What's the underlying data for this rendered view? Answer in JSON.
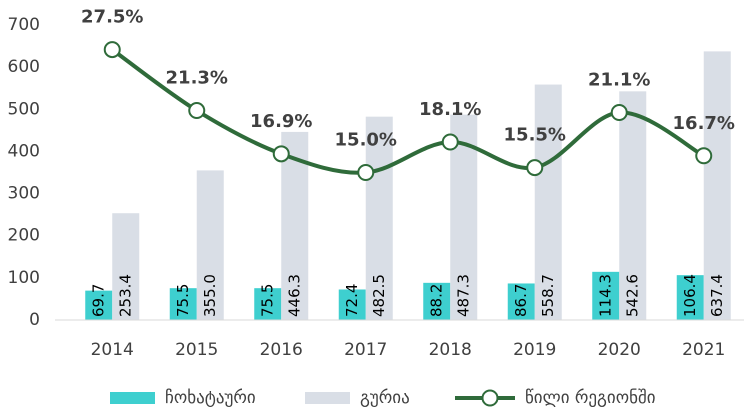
{
  "chart_data": {
    "type": "bar-line",
    "categories": [
      "2014",
      "2015",
      "2016",
      "2017",
      "2018",
      "2019",
      "2020",
      "2021"
    ],
    "series": [
      {
        "name": "ჩოხატაური",
        "type": "bar",
        "color": "#3ecfcf",
        "values": [
          69.7,
          75.5,
          75.5,
          72.4,
          88.2,
          86.7,
          114.3,
          106.4
        ],
        "value_labels": [
          "69.7",
          "75.5",
          "75.5",
          "72.4",
          "88.2",
          "86.7",
          "114.3",
          "106.4"
        ]
      },
      {
        "name": "გურია",
        "type": "bar",
        "color": "#d9dee6",
        "values": [
          253.4,
          355.0,
          446.3,
          482.5,
          487.3,
          558.7,
          542.6,
          637.4
        ],
        "value_labels": [
          "253.4",
          "355.0",
          "446.3",
          "482.5",
          "487.3",
          "558.7",
          "542.6",
          "637.4"
        ]
      },
      {
        "name": "წილი რეგიონში",
        "type": "line",
        "axis": "y2",
        "color": "#2f6b3a",
        "values": [
          27.5,
          21.3,
          16.9,
          15.0,
          18.1,
          15.5,
          21.1,
          16.7
        ],
        "value_labels": [
          "27.5%",
          "21.3%",
          "16.9%",
          "15.0%",
          "18.1%",
          "15.5%",
          "21.1%",
          "16.7%"
        ]
      }
    ],
    "ylim": [
      0,
      700
    ],
    "yticks": [
      0,
      100,
      200,
      300,
      400,
      500,
      600,
      700
    ],
    "y2lim": [
      0,
      30
    ],
    "legend": "bottom"
  }
}
